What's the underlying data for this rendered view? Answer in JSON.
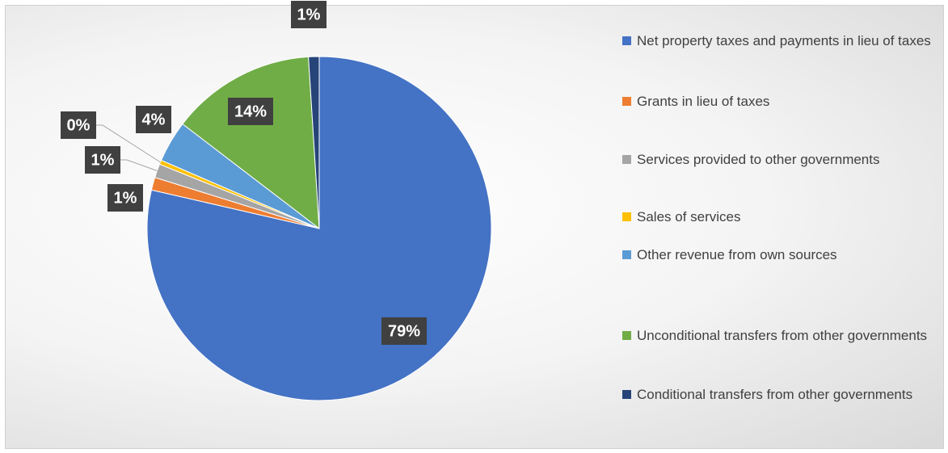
{
  "chart_data": {
    "type": "pie",
    "categories": [
      "Net property taxes and payments in lieu of taxes",
      "Grants in lieu of taxes",
      "Services provided to other governments",
      "Sales of services",
      "Other revenue from own sources",
      "Unconditional transfers from other governments",
      "Conditional transfers from other governments"
    ],
    "values": [
      78.6,
      1.2,
      1.3,
      0.4,
      3.9,
      13.6,
      1.0
    ],
    "value_labels": [
      "79%",
      "1%",
      "1%",
      "0%",
      "4%",
      "14%",
      "1%"
    ],
    "colors": [
      "#4472c4",
      "#ed7d31",
      "#a5a5a5",
      "#ffc000",
      "#5b9bd5",
      "#70ad47",
      "#264478"
    ],
    "legend": "right"
  }
}
